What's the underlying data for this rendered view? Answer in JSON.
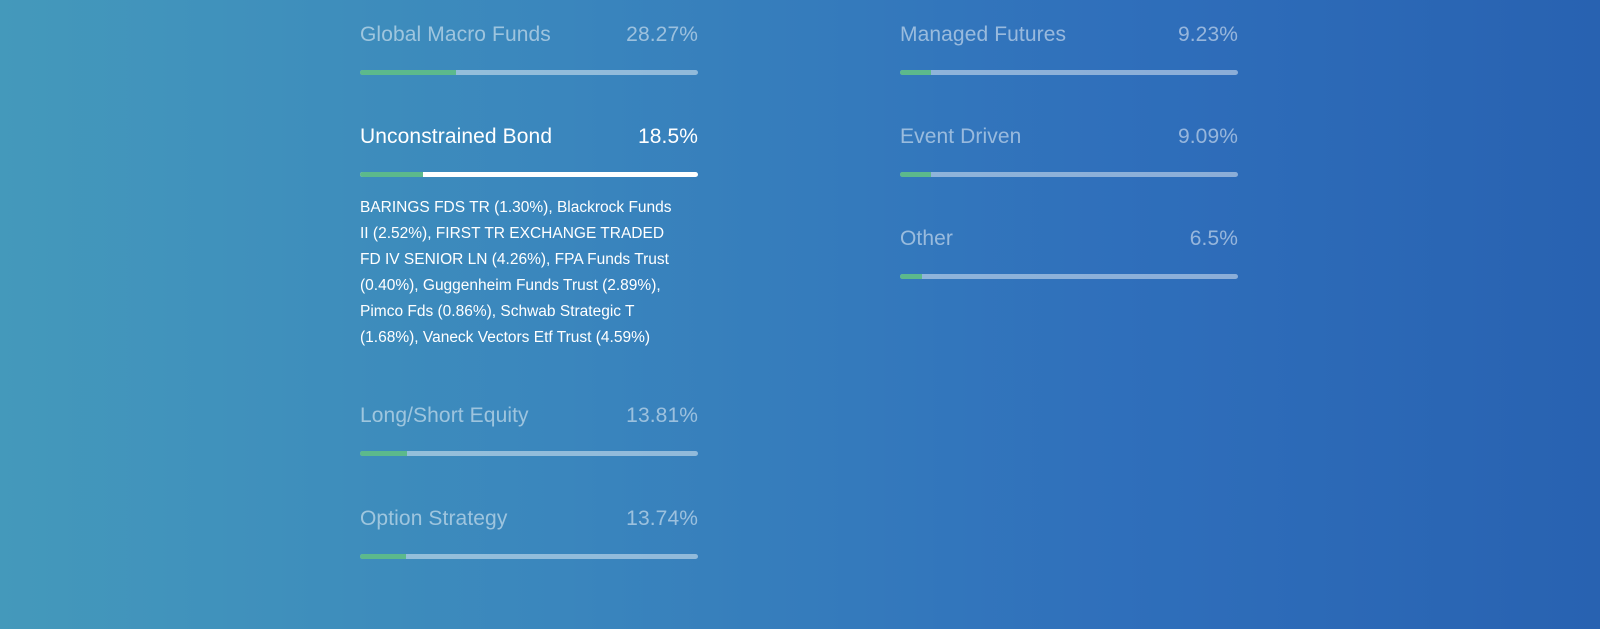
{
  "left_column": [
    {
      "name": "Global Macro Funds",
      "percent": "28.27%",
      "fill_fraction": 0.2827,
      "active": false
    },
    {
      "name": "Unconstrained Bond",
      "percent": "18.5%",
      "fill_fraction": 0.185,
      "active": true,
      "details": "BARINGS FDS TR (1.30%), Blackrock Funds II (2.52%), FIRST TR EXCHANGE TRADED FD IV SENIOR LN (4.26%), FPA Funds Trust (0.40%), Guggenheim Funds Trust (2.89%), Pimco Fds (0.86%), Schwab Strategic T (1.68%), Vaneck Vectors Etf Trust (4.59%)"
    },
    {
      "name": "Long/Short Equity",
      "percent": "13.81%",
      "fill_fraction": 0.1381,
      "active": false
    },
    {
      "name": "Option Strategy",
      "percent": "13.74%",
      "fill_fraction": 0.1374,
      "active": false
    }
  ],
  "right_column": [
    {
      "name": "Managed Futures",
      "percent": "9.23%",
      "fill_fraction": 0.0923,
      "active": false
    },
    {
      "name": "Event Driven",
      "percent": "9.09%",
      "fill_fraction": 0.0909,
      "active": false
    },
    {
      "name": "Other",
      "percent": "6.5%",
      "fill_fraction": 0.065,
      "active": false
    }
  ],
  "colors": {
    "bar_fill": "#5cb98c",
    "active_text": "#ffffff"
  }
}
